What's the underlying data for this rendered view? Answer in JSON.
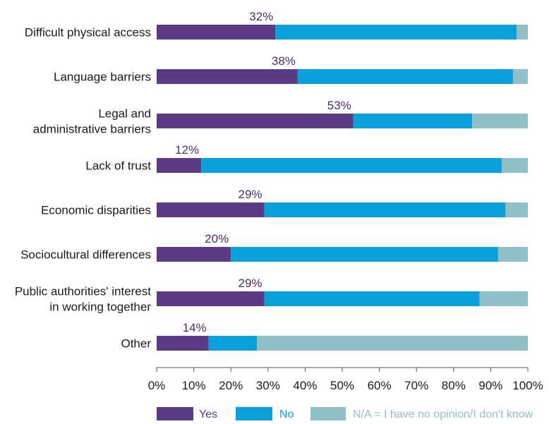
{
  "chart_data": {
    "type": "bar",
    "orientation": "horizontal",
    "stacked": true,
    "categories": [
      [
        "Difficult physical access"
      ],
      [
        "Language barriers"
      ],
      [
        "Legal and",
        "administrative barriers"
      ],
      [
        "Lack of trust"
      ],
      [
        "Economic disparities"
      ],
      [
        "Sociocultural differences"
      ],
      [
        "Public authorities' interest",
        "in working together"
      ],
      [
        "Other"
      ]
    ],
    "series": [
      {
        "name": "Yes",
        "color": "#5b3a86",
        "values": [
          32,
          38,
          53,
          12,
          29,
          20,
          29,
          14
        ]
      },
      {
        "name": "No",
        "color": "#0aa0dc",
        "values": [
          65,
          58,
          32,
          81,
          65,
          72,
          58,
          13
        ]
      },
      {
        "name": "N/A = I have no opinion/I don't know",
        "color": "#8fbfc7",
        "values": [
          3,
          4,
          15,
          7,
          6,
          8,
          13,
          73
        ]
      }
    ],
    "data_labels": [
      "32%",
      "38%",
      "53%",
      "12%",
      "29%",
      "20%",
      "29%",
      "14%"
    ],
    "xlim": [
      0,
      100
    ],
    "xticks": [
      "0%",
      "10%",
      "20%",
      "30%",
      "40%",
      "50%",
      "60%",
      "70%",
      "80%",
      "90%",
      "100%"
    ],
    "grid": false,
    "legend_position": "bottom"
  }
}
